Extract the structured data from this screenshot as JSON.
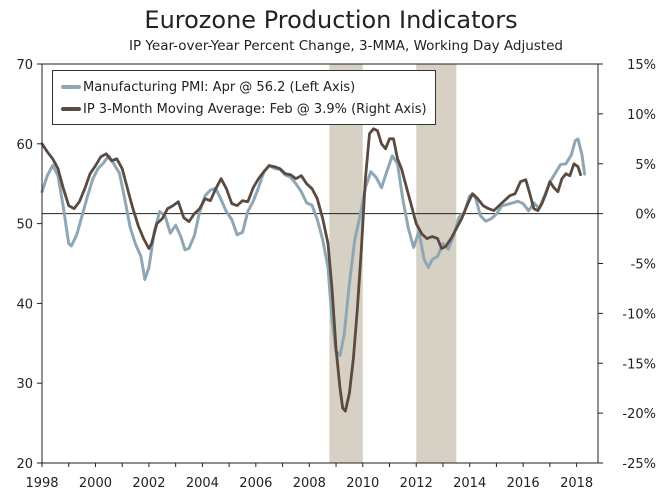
{
  "chart_data": {
    "type": "line",
    "title": "Eurozone Production Indicators",
    "subtitle": "IP Year-over-Year Percent Change, 3-MMA, Working Day Adjusted",
    "x_ticks": [
      "1998",
      "2000",
      "2002",
      "2004",
      "2006",
      "2008",
      "2010",
      "2012",
      "2014",
      "2016",
      "2018"
    ],
    "xlim": [
      1998,
      2018.8
    ],
    "left_axis": {
      "ylim": [
        20,
        70
      ],
      "ticks": [
        "20",
        "30",
        "40",
        "50",
        "60",
        "70"
      ]
    },
    "right_axis": {
      "ylim": [
        -25,
        15
      ],
      "ticks": [
        "15%",
        "10%",
        "5%",
        "0%",
        "-5%",
        "-10%",
        "-15%",
        "-20%",
        "-25%"
      ]
    },
    "shaded_periods": [
      [
        2008.75,
        2010.0
      ],
      [
        2012.0,
        2013.5
      ]
    ],
    "colors": {
      "pmi": "#8fa7b5",
      "ip": "#5a4a3f",
      "shade": "#d6d1c4",
      "axis": "#222222"
    },
    "series": [
      {
        "name": "Manufacturing PMI: Apr @ 56.2 (Left Axis)",
        "axis": "left",
        "points": [
          [
            1998.0,
            54.0
          ],
          [
            1998.2,
            56.0
          ],
          [
            1998.4,
            57.3
          ],
          [
            1998.6,
            56.0
          ],
          [
            1998.8,
            52.0
          ],
          [
            1999.0,
            47.5
          ],
          [
            1999.1,
            47.2
          ],
          [
            1999.3,
            48.6
          ],
          [
            1999.5,
            51.0
          ],
          [
            1999.7,
            53.4
          ],
          [
            1999.9,
            55.6
          ],
          [
            2000.1,
            56.9
          ],
          [
            2000.3,
            57.6
          ],
          [
            2000.5,
            58.5
          ],
          [
            2000.7,
            57.4
          ],
          [
            2000.9,
            56.3
          ],
          [
            2001.1,
            53.0
          ],
          [
            2001.3,
            49.5
          ],
          [
            2001.5,
            47.4
          ],
          [
            2001.7,
            45.9
          ],
          [
            2001.85,
            43.0
          ],
          [
            2002.0,
            44.5
          ],
          [
            2002.2,
            49.0
          ],
          [
            2002.4,
            51.5
          ],
          [
            2002.6,
            51.0
          ],
          [
            2002.8,
            48.8
          ],
          [
            2003.0,
            49.8
          ],
          [
            2003.2,
            48.3
          ],
          [
            2003.35,
            46.7
          ],
          [
            2003.5,
            46.9
          ],
          [
            2003.7,
            48.5
          ],
          [
            2003.9,
            51.5
          ],
          [
            2004.1,
            53.5
          ],
          [
            2004.3,
            54.2
          ],
          [
            2004.5,
            54.4
          ],
          [
            2004.7,
            53.0
          ],
          [
            2004.9,
            51.5
          ],
          [
            2005.1,
            50.5
          ],
          [
            2005.3,
            48.6
          ],
          [
            2005.5,
            48.9
          ],
          [
            2005.7,
            51.5
          ],
          [
            2005.9,
            52.8
          ],
          [
            2006.1,
            54.5
          ],
          [
            2006.3,
            56.5
          ],
          [
            2006.5,
            57.3
          ],
          [
            2006.7,
            56.9
          ],
          [
            2006.9,
            56.8
          ],
          [
            2007.1,
            56.1
          ],
          [
            2007.3,
            55.8
          ],
          [
            2007.5,
            55.0
          ],
          [
            2007.7,
            54.0
          ],
          [
            2007.9,
            52.6
          ],
          [
            2008.1,
            52.3
          ],
          [
            2008.3,
            50.5
          ],
          [
            2008.5,
            48.0
          ],
          [
            2008.7,
            44.5
          ],
          [
            2008.85,
            38.0
          ],
          [
            2009.0,
            34.0
          ],
          [
            2009.15,
            33.5
          ],
          [
            2009.3,
            36.0
          ],
          [
            2009.5,
            42.5
          ],
          [
            2009.7,
            48.0
          ],
          [
            2009.9,
            51.0
          ],
          [
            2010.1,
            54.5
          ],
          [
            2010.3,
            56.5
          ],
          [
            2010.5,
            55.8
          ],
          [
            2010.7,
            54.5
          ],
          [
            2010.9,
            56.5
          ],
          [
            2011.1,
            58.5
          ],
          [
            2011.3,
            57.5
          ],
          [
            2011.5,
            53.0
          ],
          [
            2011.7,
            49.5
          ],
          [
            2011.9,
            47.0
          ],
          [
            2012.1,
            49.0
          ],
          [
            2012.3,
            45.5
          ],
          [
            2012.45,
            44.5
          ],
          [
            2012.6,
            45.5
          ],
          [
            2012.8,
            45.9
          ],
          [
            2013.0,
            47.5
          ],
          [
            2013.2,
            46.8
          ],
          [
            2013.4,
            48.5
          ],
          [
            2013.6,
            50.8
          ],
          [
            2013.8,
            51.4
          ],
          [
            2014.0,
            53.5
          ],
          [
            2014.2,
            53.5
          ],
          [
            2014.4,
            51.0
          ],
          [
            2014.6,
            50.3
          ],
          [
            2014.8,
            50.6
          ],
          [
            2015.0,
            51.2
          ],
          [
            2015.2,
            52.2
          ],
          [
            2015.4,
            52.4
          ],
          [
            2015.6,
            52.6
          ],
          [
            2015.8,
            52.8
          ],
          [
            2016.0,
            52.5
          ],
          [
            2016.2,
            51.6
          ],
          [
            2016.4,
            52.6
          ],
          [
            2016.6,
            51.9
          ],
          [
            2016.8,
            53.5
          ],
          [
            2017.0,
            55.2
          ],
          [
            2017.2,
            56.3
          ],
          [
            2017.4,
            57.4
          ],
          [
            2017.6,
            57.5
          ],
          [
            2017.8,
            58.6
          ],
          [
            2017.95,
            60.4
          ],
          [
            2018.05,
            60.6
          ],
          [
            2018.2,
            58.6
          ],
          [
            2018.3,
            56.2
          ]
        ]
      },
      {
        "name": "IP 3-Month Moving Average: Feb @ 3.9% (Right Axis)",
        "axis": "right",
        "points": [
          [
            1998.0,
            7.0
          ],
          [
            1998.2,
            6.2
          ],
          [
            1998.4,
            5.5
          ],
          [
            1998.6,
            4.5
          ],
          [
            1998.8,
            2.5
          ],
          [
            1999.0,
            0.8
          ],
          [
            1999.2,
            0.5
          ],
          [
            1999.4,
            1.2
          ],
          [
            1999.6,
            2.5
          ],
          [
            1999.8,
            4.0
          ],
          [
            2000.0,
            4.8
          ],
          [
            2000.2,
            5.7
          ],
          [
            2000.4,
            6.0
          ],
          [
            2000.6,
            5.3
          ],
          [
            2000.8,
            5.5
          ],
          [
            2001.0,
            4.5
          ],
          [
            2001.2,
            2.5
          ],
          [
            2001.4,
            0.5
          ],
          [
            2001.6,
            -1.2
          ],
          [
            2001.8,
            -2.5
          ],
          [
            2002.0,
            -3.5
          ],
          [
            2002.1,
            -3.0
          ],
          [
            2002.3,
            -1.0
          ],
          [
            2002.5,
            -0.5
          ],
          [
            2002.7,
            0.5
          ],
          [
            2002.9,
            0.8
          ],
          [
            2003.1,
            1.2
          ],
          [
            2003.3,
            -0.4
          ],
          [
            2003.5,
            -0.8
          ],
          [
            2003.7,
            0.0
          ],
          [
            2003.9,
            0.5
          ],
          [
            2004.1,
            1.5
          ],
          [
            2004.3,
            1.3
          ],
          [
            2004.5,
            2.5
          ],
          [
            2004.7,
            3.5
          ],
          [
            2004.9,
            2.5
          ],
          [
            2005.1,
            1.0
          ],
          [
            2005.3,
            0.8
          ],
          [
            2005.5,
            1.3
          ],
          [
            2005.7,
            1.2
          ],
          [
            2005.9,
            2.6
          ],
          [
            2006.1,
            3.5
          ],
          [
            2006.3,
            4.2
          ],
          [
            2006.5,
            4.8
          ],
          [
            2006.7,
            4.7
          ],
          [
            2006.9,
            4.5
          ],
          [
            2007.1,
            4.0
          ],
          [
            2007.3,
            3.9
          ],
          [
            2007.5,
            3.5
          ],
          [
            2007.7,
            3.8
          ],
          [
            2007.9,
            3.0
          ],
          [
            2008.1,
            2.5
          ],
          [
            2008.3,
            1.5
          ],
          [
            2008.5,
            -0.5
          ],
          [
            2008.7,
            -3.0
          ],
          [
            2008.85,
            -7.5
          ],
          [
            2009.0,
            -13.5
          ],
          [
            2009.15,
            -17.5
          ],
          [
            2009.25,
            -19.5
          ],
          [
            2009.35,
            -19.8
          ],
          [
            2009.5,
            -18.0
          ],
          [
            2009.65,
            -14.5
          ],
          [
            2009.8,
            -9.5
          ],
          [
            2009.95,
            -3.5
          ],
          [
            2010.1,
            3.5
          ],
          [
            2010.25,
            8.0
          ],
          [
            2010.4,
            8.5
          ],
          [
            2010.55,
            8.3
          ],
          [
            2010.7,
            7.0
          ],
          [
            2010.85,
            6.5
          ],
          [
            2011.0,
            7.5
          ],
          [
            2011.15,
            7.5
          ],
          [
            2011.3,
            5.5
          ],
          [
            2011.45,
            4.5
          ],
          [
            2011.6,
            3.0
          ],
          [
            2011.8,
            1.0
          ],
          [
            2012.0,
            -1.0
          ],
          [
            2012.2,
            -2.0
          ],
          [
            2012.4,
            -2.5
          ],
          [
            2012.6,
            -2.3
          ],
          [
            2012.8,
            -2.5
          ],
          [
            2012.95,
            -3.5
          ],
          [
            2013.1,
            -3.3
          ],
          [
            2013.3,
            -2.5
          ],
          [
            2013.5,
            -1.5
          ],
          [
            2013.7,
            -0.5
          ],
          [
            2013.9,
            0.8
          ],
          [
            2014.1,
            2.0
          ],
          [
            2014.3,
            1.5
          ],
          [
            2014.5,
            0.8
          ],
          [
            2014.7,
            0.5
          ],
          [
            2014.9,
            0.3
          ],
          [
            2015.1,
            0.8
          ],
          [
            2015.3,
            1.3
          ],
          [
            2015.5,
            1.8
          ],
          [
            2015.7,
            2.0
          ],
          [
            2015.9,
            3.2
          ],
          [
            2016.1,
            3.4
          ],
          [
            2016.25,
            2.0
          ],
          [
            2016.4,
            0.5
          ],
          [
            2016.55,
            0.3
          ],
          [
            2016.7,
            1.0
          ],
          [
            2016.85,
            2.0
          ],
          [
            2017.0,
            3.2
          ],
          [
            2017.15,
            2.6
          ],
          [
            2017.3,
            2.2
          ],
          [
            2017.45,
            3.5
          ],
          [
            2017.6,
            4.0
          ],
          [
            2017.75,
            3.8
          ],
          [
            2017.9,
            5.0
          ],
          [
            2018.05,
            4.7
          ],
          [
            2018.15,
            3.9
          ]
        ]
      }
    ]
  }
}
